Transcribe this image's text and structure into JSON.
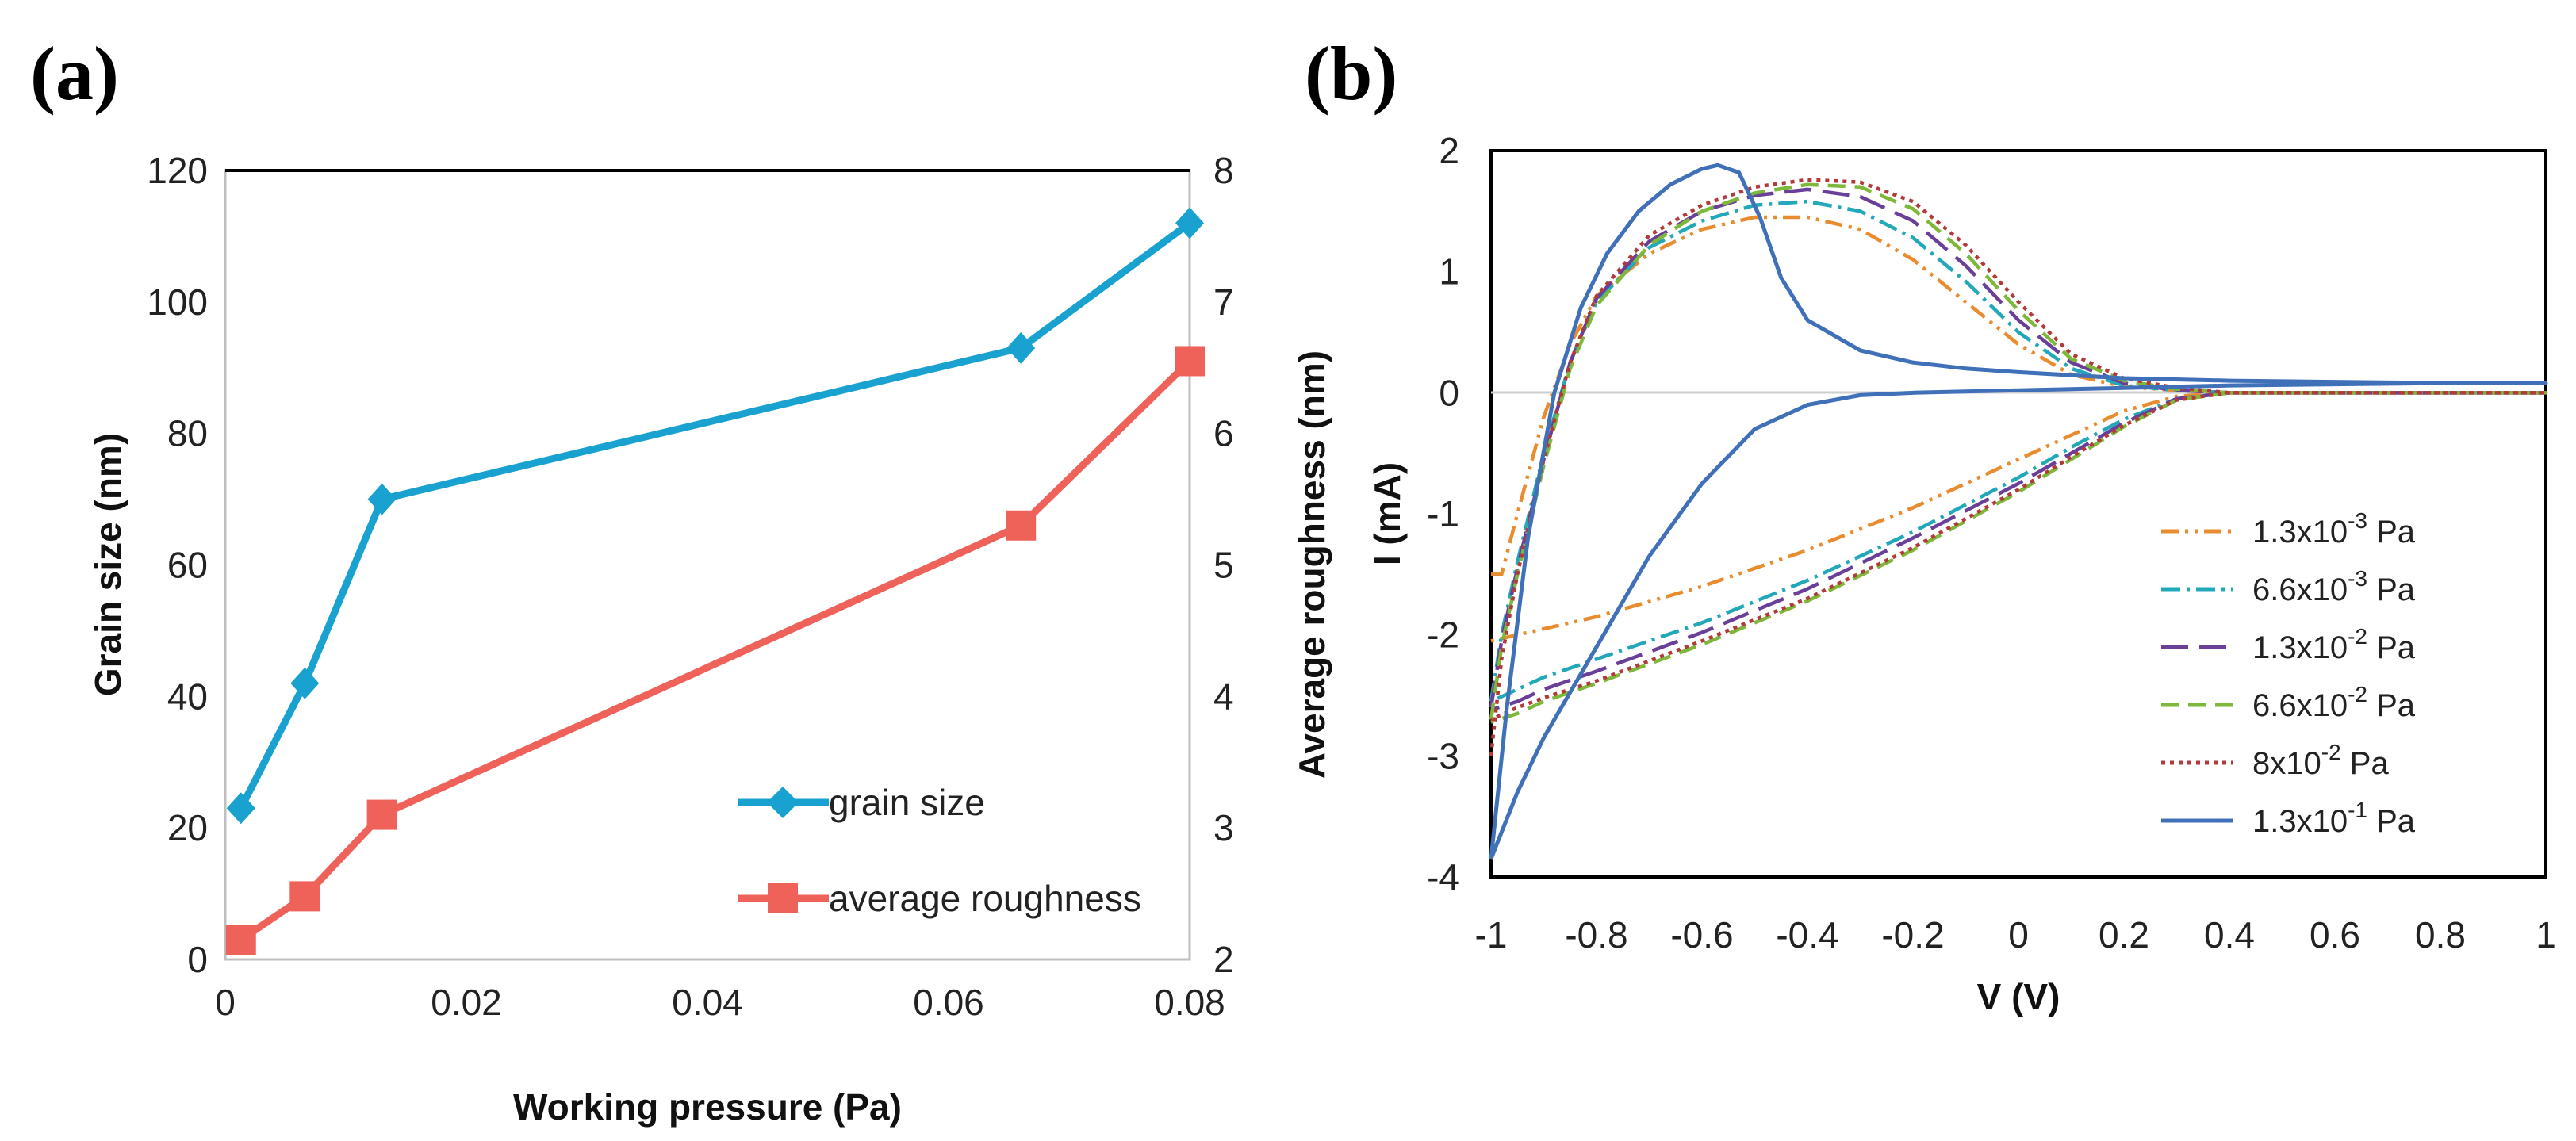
{
  "chart_data": [
    {
      "panel_label": "(a)",
      "type": "line",
      "xlabel": "Working pressure (Pa)",
      "ylabel": "Grain size (nm)",
      "ylabel_right": "Average roughness (nm)",
      "xlim": [
        0,
        0.08
      ],
      "ylim": [
        0,
        120
      ],
      "ylim_right": [
        2,
        8
      ],
      "x_ticks": [
        "0",
        "0.02",
        "0.04",
        "0.06",
        "0.08"
      ],
      "y_ticks": [
        "0",
        "20",
        "40",
        "60",
        "80",
        "100",
        "120"
      ],
      "y_right_ticks": [
        "2",
        "3",
        "4",
        "5",
        "6",
        "7",
        "8"
      ],
      "legend_position": "bottom-right",
      "series": [
        {
          "name": "grain size",
          "axis": "left",
          "color": "#19a2cf",
          "marker": "diamond",
          "x": [
            0.0013,
            0.0066,
            0.013,
            0.066,
            0.08
          ],
          "values": [
            23,
            42,
            70,
            93,
            112
          ]
        },
        {
          "name": "average roughness",
          "axis": "right",
          "color": "#ee625a",
          "marker": "square",
          "x": [
            0.0013,
            0.0066,
            0.013,
            0.066,
            0.08
          ],
          "values": [
            2.15,
            2.48,
            3.1,
            5.3,
            6.55
          ]
        }
      ]
    },
    {
      "panel_label": "(b)",
      "type": "line",
      "xlabel": "V (V)",
      "ylabel": "I (mA)",
      "xlim": [
        -1,
        1
      ],
      "ylim": [
        -4,
        2
      ],
      "x_ticks": [
        "-1",
        "-0.8",
        "-0.6",
        "-0.4",
        "-0.2",
        "0",
        "0.2",
        "0.4",
        "0.6",
        "0.8",
        "1"
      ],
      "y_ticks": [
        "-4",
        "-3",
        "-2",
        "-1",
        "0",
        "1",
        "2"
      ],
      "legend_position": "bottom-right",
      "series": [
        {
          "name": "1.3x10",
          "exp": "-3",
          "unit": " Pa",
          "color": "#e98c2f",
          "dash": "22 8 4 8 4 8",
          "x": [
            -1,
            -0.98,
            -0.95,
            -0.9,
            -0.85,
            -0.8,
            -0.7,
            -0.6,
            -0.5,
            -0.4,
            -0.3,
            -0.2,
            -0.1,
            0,
            0.1,
            0.2,
            0.3,
            0.4,
            0.6,
            0.8,
            1,
            0.8,
            0.6,
            0.4,
            0.3,
            0.2,
            0.1,
            0,
            -0.2,
            -0.4,
            -0.6,
            -0.8,
            -0.9,
            -0.95,
            -1
          ],
          "values": [
            -1.5,
            -1.5,
            -1.0,
            -0.2,
            0.4,
            0.8,
            1.15,
            1.35,
            1.45,
            1.45,
            1.35,
            1.1,
            0.75,
            0.4,
            0.15,
            0.05,
            0.02,
            0.0,
            0.0,
            0.0,
            0.0,
            0.0,
            0.0,
            0.0,
            -0.03,
            -0.15,
            -0.35,
            -0.55,
            -0.95,
            -1.3,
            -1.6,
            -1.85,
            -1.95,
            -2.0,
            -2.05
          ]
        },
        {
          "name": "6.6x10",
          "exp": "-3",
          "unit": " Pa",
          "color": "#22a8b8",
          "dash": "24 8 4 8",
          "x": [
            -1,
            -0.98,
            -0.95,
            -0.9,
            -0.85,
            -0.8,
            -0.7,
            -0.6,
            -0.5,
            -0.4,
            -0.3,
            -0.2,
            -0.1,
            0,
            0.1,
            0.2,
            0.3,
            0.4,
            0.6,
            0.8,
            1,
            0.8,
            0.6,
            0.4,
            0.3,
            0.2,
            0.1,
            0,
            -0.2,
            -0.4,
            -0.6,
            -0.8,
            -0.9,
            -0.95,
            -1
          ],
          "values": [
            -2.55,
            -2.0,
            -1.4,
            -0.5,
            0.25,
            0.75,
            1.2,
            1.42,
            1.55,
            1.58,
            1.5,
            1.28,
            0.92,
            0.5,
            0.2,
            0.06,
            0.02,
            0.0,
            0.0,
            0.0,
            0.0,
            0.0,
            0.0,
            0.0,
            -0.05,
            -0.22,
            -0.45,
            -0.7,
            -1.15,
            -1.55,
            -1.9,
            -2.2,
            -2.35,
            -2.45,
            -2.55
          ]
        },
        {
          "name": "1.3x10",
          "exp": "-2",
          "unit": " Pa",
          "color": "#6a3f98",
          "dash": "34 14",
          "x": [
            -1,
            -0.98,
            -0.95,
            -0.9,
            -0.85,
            -0.8,
            -0.7,
            -0.6,
            -0.5,
            -0.4,
            -0.3,
            -0.2,
            -0.1,
            0,
            0.1,
            0.2,
            0.3,
            0.4,
            0.6,
            0.8,
            1,
            0.8,
            0.6,
            0.4,
            0.3,
            0.2,
            0.1,
            0,
            -0.2,
            -0.4,
            -0.6,
            -0.8,
            -0.9,
            -0.95,
            -1
          ],
          "values": [
            -2.6,
            -2.05,
            -1.45,
            -0.55,
            0.25,
            0.78,
            1.25,
            1.5,
            1.63,
            1.68,
            1.62,
            1.42,
            1.05,
            0.6,
            0.25,
            0.08,
            0.02,
            0.0,
            0.0,
            0.0,
            0.0,
            0.0,
            0.0,
            0.0,
            -0.05,
            -0.25,
            -0.5,
            -0.75,
            -1.2,
            -1.62,
            -1.98,
            -2.3,
            -2.45,
            -2.55,
            -2.62
          ]
        },
        {
          "name": "6.6x10",
          "exp": "-2",
          "unit": " Pa",
          "color": "#7db83a",
          "dash": "22 12",
          "x": [
            -1,
            -0.98,
            -0.95,
            -0.9,
            -0.85,
            -0.8,
            -0.7,
            -0.6,
            -0.5,
            -0.4,
            -0.3,
            -0.2,
            -0.1,
            0,
            0.1,
            0.2,
            0.3,
            0.4,
            0.6,
            0.8,
            1,
            0.8,
            0.6,
            0.4,
            0.3,
            0.2,
            0.1,
            0,
            -0.2,
            -0.4,
            -0.6,
            -0.8,
            -0.9,
            -0.95,
            -1
          ],
          "values": [
            -2.7,
            -2.1,
            -1.5,
            -0.6,
            0.2,
            0.72,
            1.22,
            1.5,
            1.65,
            1.72,
            1.7,
            1.52,
            1.15,
            0.68,
            0.28,
            0.1,
            0.03,
            0.0,
            0.0,
            0.0,
            0.0,
            0.0,
            0.0,
            0.0,
            -0.06,
            -0.28,
            -0.55,
            -0.82,
            -1.3,
            -1.72,
            -2.08,
            -2.4,
            -2.55,
            -2.65,
            -2.72
          ]
        },
        {
          "name": "8x10",
          "exp": "-2",
          "unit": " Pa",
          "color": "#b23a3a",
          "dash": "5 6",
          "x": [
            -1,
            -0.98,
            -0.95,
            -0.9,
            -0.85,
            -0.8,
            -0.7,
            -0.6,
            -0.5,
            -0.4,
            -0.3,
            -0.2,
            -0.1,
            0,
            0.1,
            0.2,
            0.3,
            0.4,
            0.6,
            0.8,
            1,
            0.8,
            0.6,
            0.4,
            0.3,
            0.2,
            0.1,
            0,
            -0.2,
            -0.4,
            -0.6,
            -0.8,
            -0.9,
            -0.95,
            -1
          ],
          "values": [
            -3.0,
            -2.2,
            -1.5,
            -0.55,
            0.25,
            0.8,
            1.3,
            1.55,
            1.7,
            1.76,
            1.74,
            1.58,
            1.22,
            0.75,
            0.32,
            0.12,
            0.04,
            0.0,
            0.0,
            0.0,
            0.0,
            0.0,
            0.0,
            0.0,
            -0.06,
            -0.27,
            -0.53,
            -0.8,
            -1.28,
            -1.7,
            -2.05,
            -2.38,
            -2.52,
            -2.6,
            -2.7
          ]
        },
        {
          "name": "1.3x10",
          "exp": "-1",
          "unit": " Pa",
          "color": "#3f70b8",
          "dash": "",
          "x": [
            -1,
            -0.97,
            -0.93,
            -0.88,
            -0.83,
            -0.78,
            -0.72,
            -0.66,
            -0.6,
            -0.57,
            -0.53,
            -0.49,
            -0.45,
            -0.4,
            -0.3,
            -0.2,
            -0.1,
            0,
            0.2,
            0.4,
            0.6,
            0.8,
            1,
            0.8,
            0.6,
            0.4,
            0.2,
            0,
            -0.1,
            -0.2,
            -0.3,
            -0.4,
            -0.5,
            -0.6,
            -0.7,
            -0.8,
            -0.9,
            -0.95,
            -1
          ],
          "values": [
            -3.85,
            -2.6,
            -1.2,
            0.0,
            0.7,
            1.15,
            1.5,
            1.72,
            1.85,
            1.88,
            1.82,
            1.45,
            0.95,
            0.6,
            0.35,
            0.25,
            0.2,
            0.17,
            0.12,
            0.1,
            0.09,
            0.08,
            0.08,
            0.08,
            0.07,
            0.06,
            0.04,
            0.02,
            0.01,
            0.0,
            -0.02,
            -0.1,
            -0.3,
            -0.75,
            -1.35,
            -2.1,
            -2.85,
            -3.3,
            -3.85
          ]
        }
      ]
    }
  ]
}
